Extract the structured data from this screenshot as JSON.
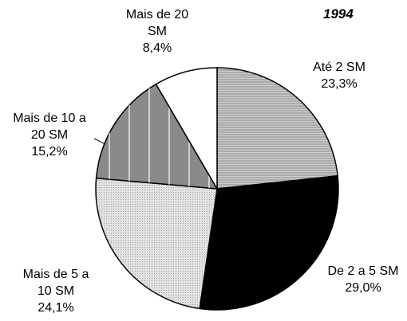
{
  "chart_data": {
    "type": "pie",
    "title": "1994",
    "categories": [
      "Até 2 SM",
      "De 2 a 5 SM",
      "Mais de 5 a 10 SM",
      "Mais de 10 a 20 SM",
      "Mais de 20 SM"
    ],
    "values": [
      23.3,
      29.0,
      24.1,
      15.2,
      8.4
    ],
    "value_labels": [
      "23,3%",
      "29,0%",
      "24,1%",
      "15,2%",
      "8,4%"
    ],
    "colors": [
      "#cfcfcf",
      "#000000",
      "#e2e2e2",
      "#8a8a8a",
      "#ffffff"
    ]
  }
}
